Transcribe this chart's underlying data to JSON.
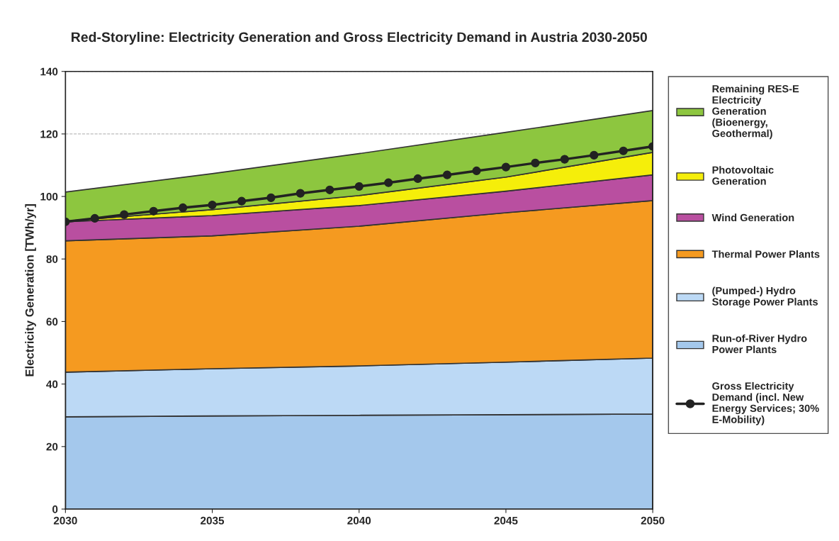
{
  "chart_data": {
    "type": "area",
    "title": "Red-Storyline: Electricity Generation and Gross Electricity Demand in Austria 2030-2050",
    "ylabel": "Electricity Generation [TWh/yr]",
    "x": [
      2030,
      2035,
      2040,
      2045,
      2050
    ],
    "stacked": true,
    "series": [
      {
        "name": "Run-of-River Hydro Power Plants",
        "color": "#a4c8ec",
        "values": [
          29.5,
          29.8,
          30.0,
          30.2,
          30.4
        ]
      },
      {
        "name": "(Pumped-) Hydro Storage Power Plants",
        "color": "#bcd9f5",
        "values": [
          14.3,
          15.1,
          15.8,
          16.8,
          17.9
        ]
      },
      {
        "name": "Thermal Power Plants",
        "color": "#f59a20",
        "values": [
          42.0,
          42.5,
          44.7,
          47.8,
          50.4
        ]
      },
      {
        "name": "Wind Generation",
        "color": "#b94fa0",
        "values": [
          6.1,
          6.5,
          6.6,
          6.9,
          8.2
        ]
      },
      {
        "name": "Photovoltaic Generation",
        "color": "#f5ee0a",
        "values": [
          0.2,
          1.9,
          3.2,
          4.5,
          7.2
        ]
      },
      {
        "name": "Remaining RES-E Electricity Generation (Bioenergy, Geothermal)",
        "color": "#8dc63f",
        "values": [
          9.3,
          11.5,
          13.4,
          14.3,
          13.4
        ]
      },
      {
        "name": "Gross Electricity Demand (incl. New Energy Services; 30% E-Mobility)",
        "type": "line",
        "color": "#222222",
        "marker": "circle",
        "x": [
          2030,
          2031,
          2032,
          2033,
          2034,
          2035,
          2036,
          2037,
          2038,
          2039,
          2040,
          2041,
          2042,
          2043,
          2044,
          2045,
          2046,
          2047,
          2048,
          2049,
          2050
        ],
        "values": [
          91.9,
          93.0,
          94.2,
          95.3,
          96.4,
          97.3,
          98.5,
          99.6,
          101.0,
          102.1,
          103.2,
          104.4,
          105.7,
          106.9,
          108.2,
          109.4,
          110.7,
          111.9,
          113.2,
          114.6,
          116.0
        ]
      }
    ],
    "xlim": [
      2030,
      2050
    ],
    "xticks": [
      2030,
      2035,
      2040,
      2045,
      2050
    ],
    "ylim": [
      0,
      140
    ],
    "yticks": [
      0,
      20,
      40,
      60,
      80,
      100,
      120,
      140
    ],
    "grid": "y",
    "legend": "right"
  }
}
